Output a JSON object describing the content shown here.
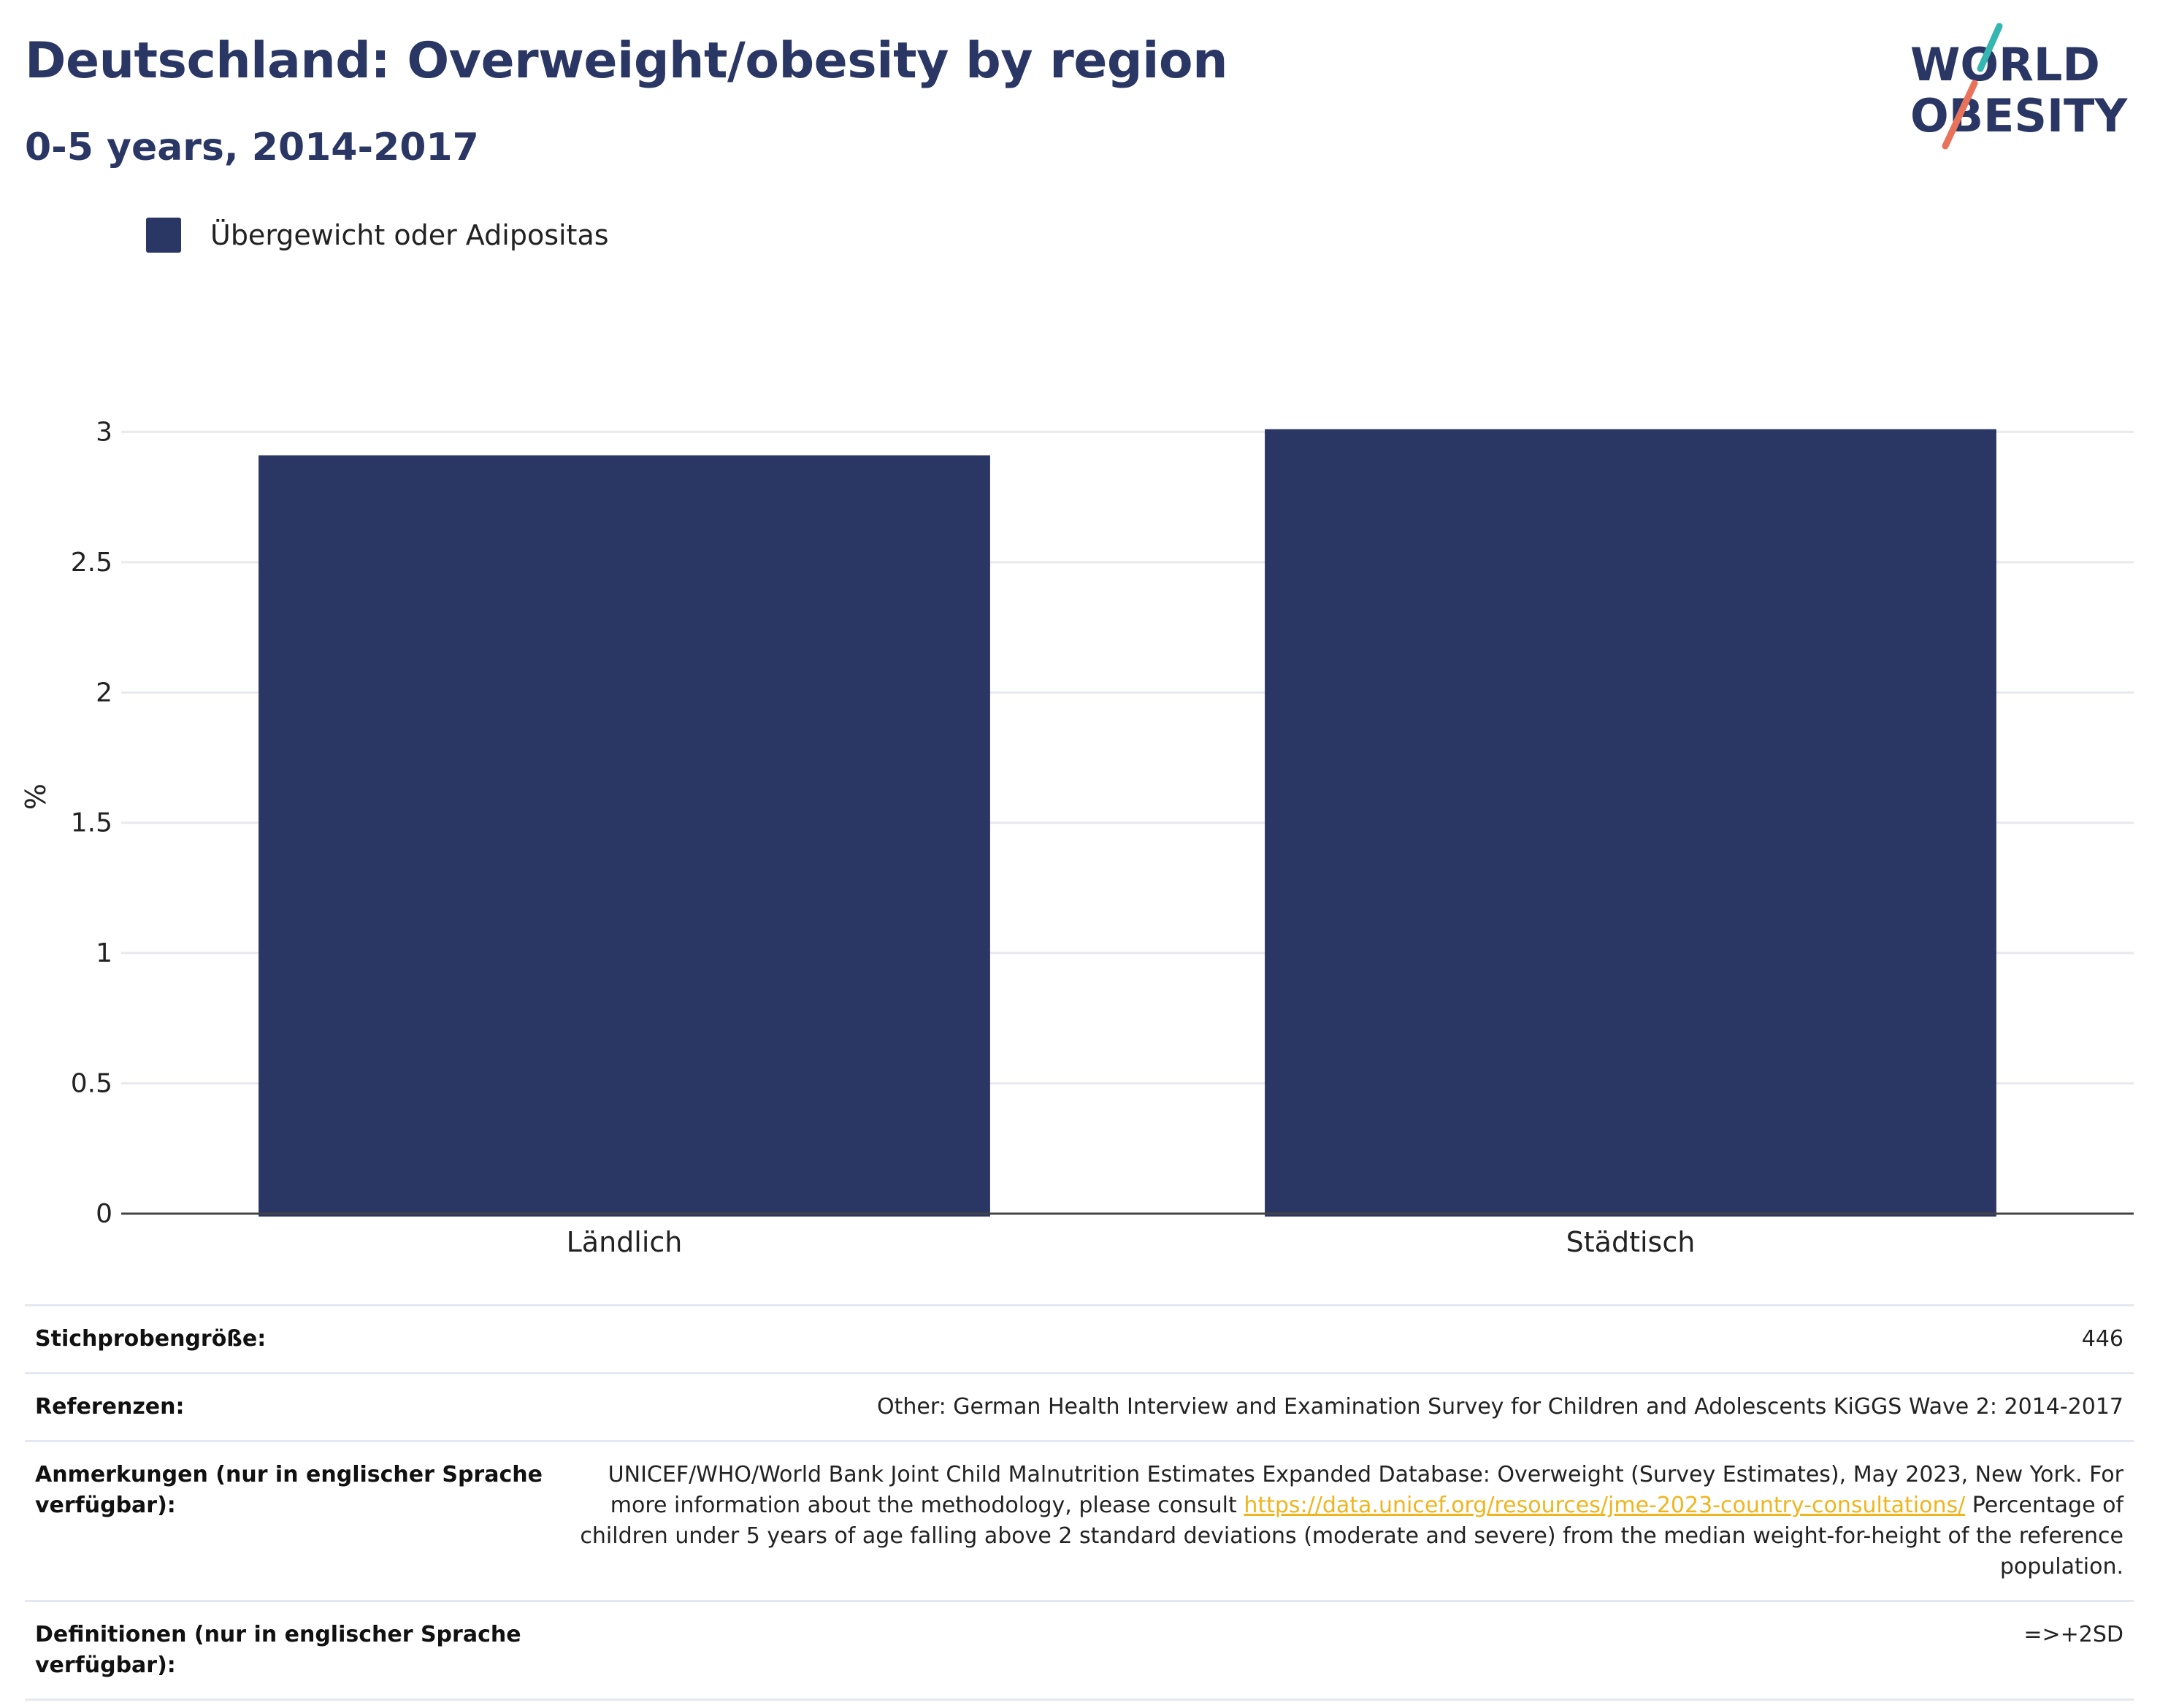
{
  "header": {
    "title": "Deutschland: Overweight/obesity by region",
    "subtitle": "0-5 years, 2014-2017"
  },
  "logo": {
    "line1": "WORLD",
    "line2": "OBESITY",
    "colors": {
      "text": "#2a3663",
      "teal": "#35b6b0",
      "coral": "#e8735a"
    }
  },
  "chart_data": {
    "type": "bar",
    "categories": [
      "Ländlich",
      "Städtisch"
    ],
    "series": [
      {
        "name": "Übergewicht oder Adipositas",
        "values": [
          2.91,
          3.01
        ],
        "color": "#2a3663"
      }
    ],
    "xlabel": "",
    "ylabel": "%",
    "ylim": [
      0,
      3.2
    ],
    "yticks": [
      0,
      0.5,
      1,
      1.5,
      2,
      2.5,
      3
    ],
    "ytick_labels": [
      "0",
      "0.5",
      "1",
      "1.5",
      "2",
      "2.5",
      "3"
    ],
    "grid": true,
    "legend_position": "top-left"
  },
  "info": {
    "sample": {
      "label": "Stichprobengröße:",
      "value": "446"
    },
    "references": {
      "label": "Referenzen:",
      "value": "Other: German Health Interview and Examination Survey for Children and Adolescents KiGGS Wave 2: 2014-2017"
    },
    "notes": {
      "label": "Anmerkungen (nur in englischer Sprache verfügbar):",
      "text_before": "UNICEF/WHO/World Bank Joint Child Malnutrition Estimates Expanded Database: Overweight (Survey Estimates), May 2023, New York. For more information about the methodology, please consult ",
      "link": "https://data.unicef.org/resources/jme-2023-country-consultations/",
      "text_after": " Percentage of children under 5 years of age falling above 2 standard deviations (moderate and severe) from the median weight-for-height of the reference population."
    },
    "definitions": {
      "label": "Definitionen (nur in englischer Sprache verfügbar):",
      "value": "=>+2SD"
    }
  }
}
